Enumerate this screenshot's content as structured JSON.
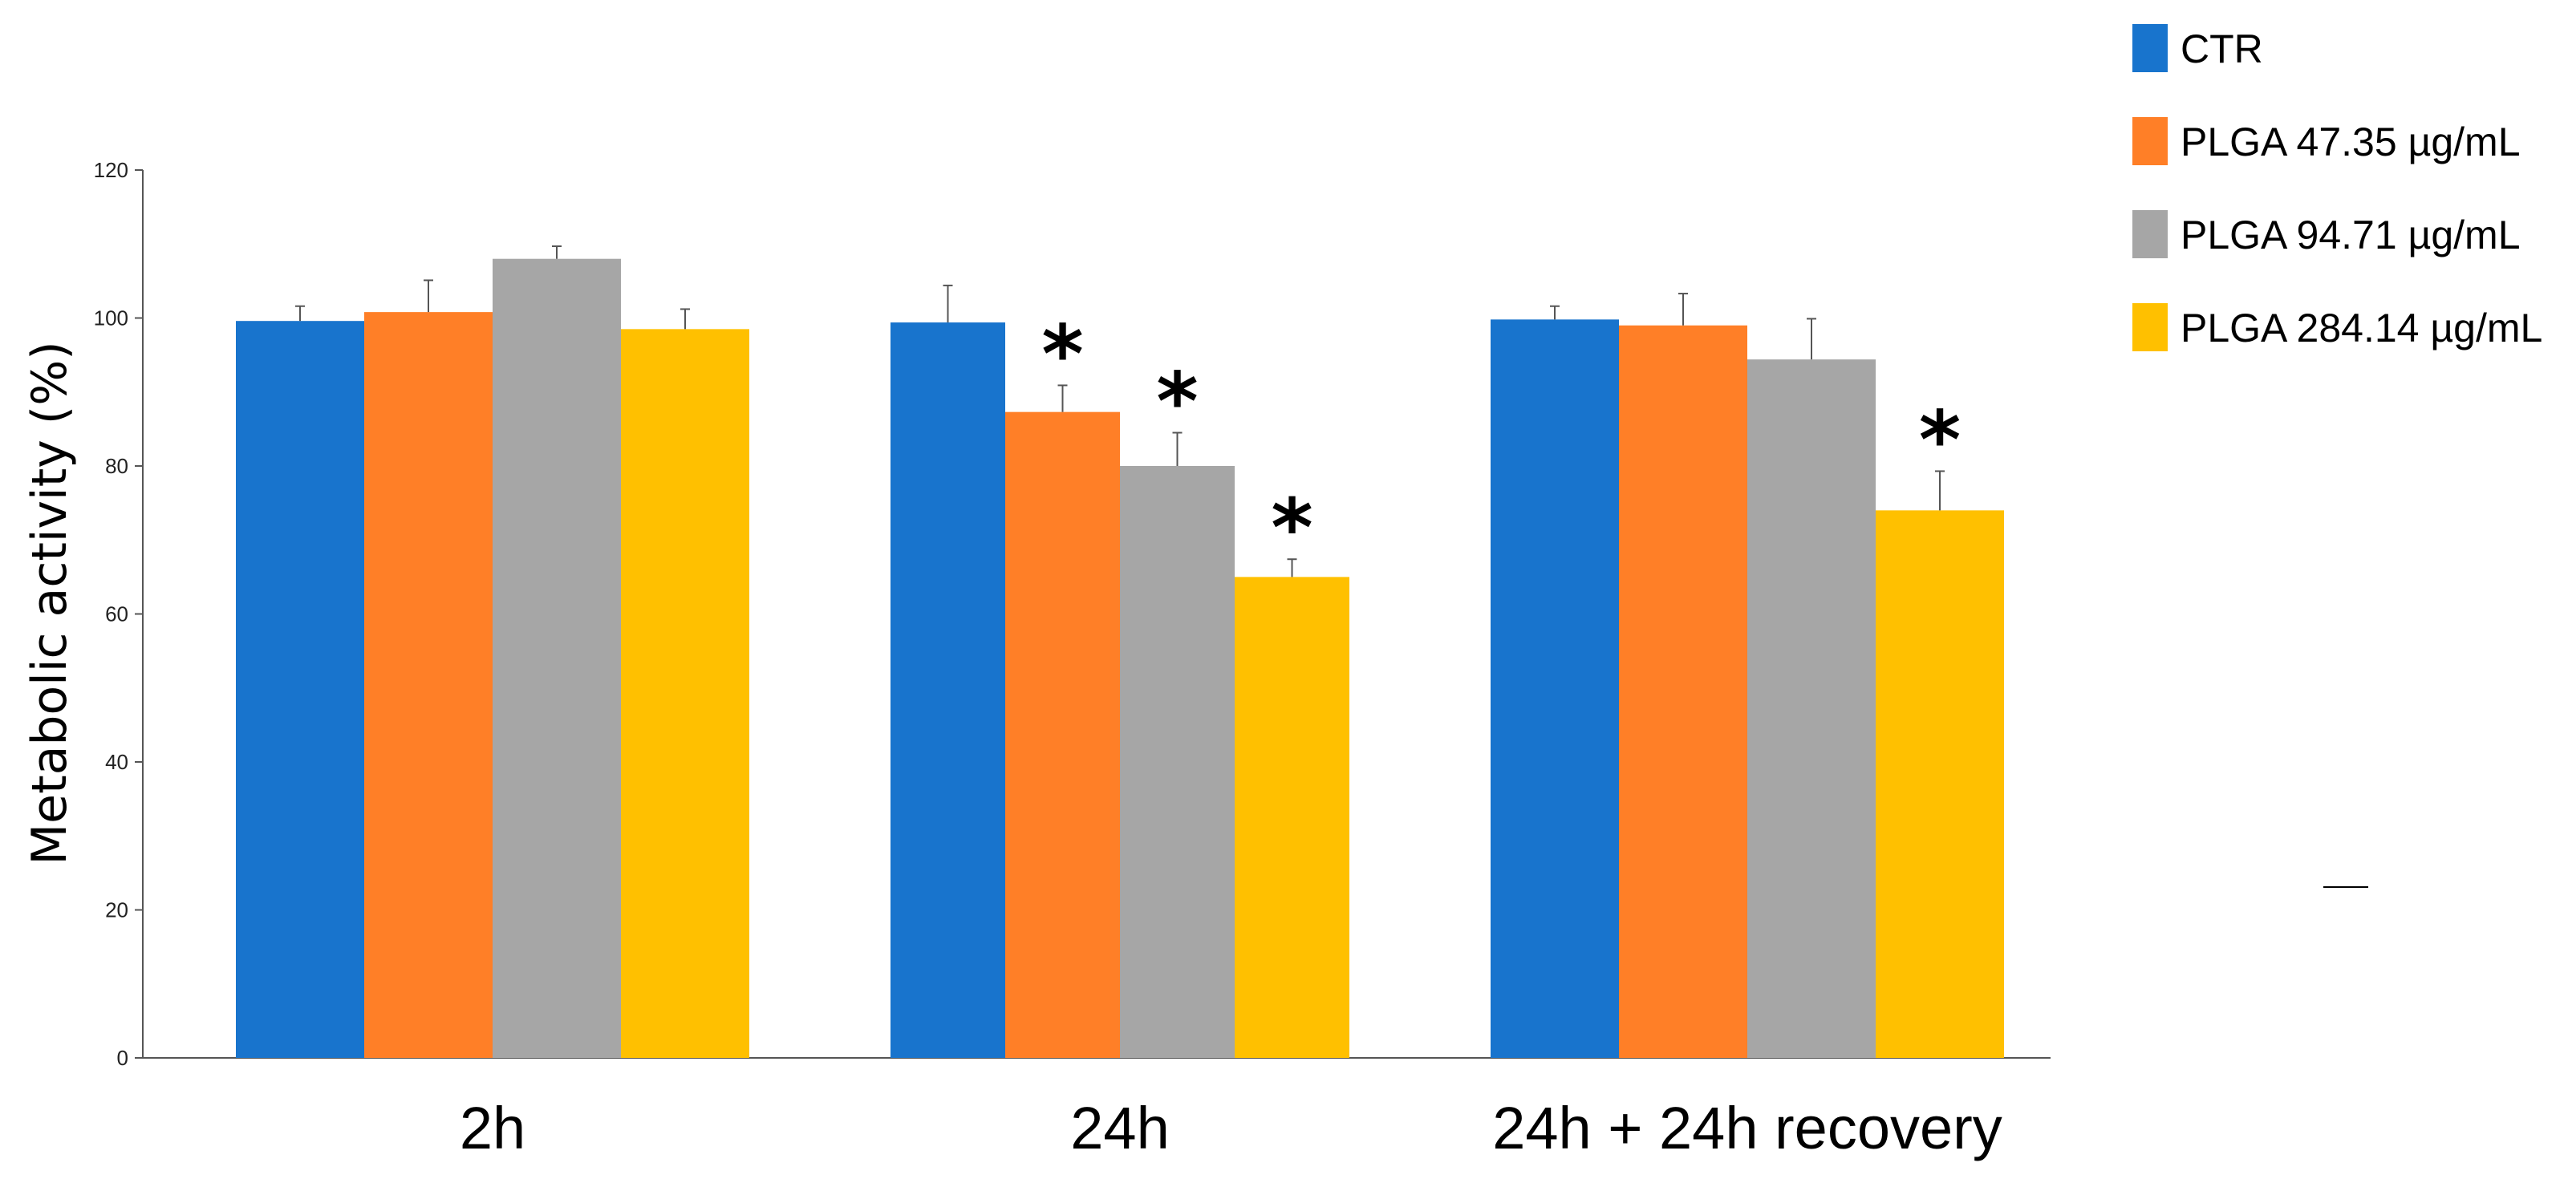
{
  "chart_data": {
    "type": "bar",
    "title": "",
    "xlabel": "",
    "ylabel": "Metabolic activity (%)",
    "ylim": [
      0,
      120
    ],
    "yticks": [
      0,
      20,
      40,
      60,
      80,
      100,
      120
    ],
    "grid": false,
    "legend_position": "top-right",
    "categories": [
      "2h",
      "24h",
      "24h + 24h recovery"
    ],
    "series": [
      {
        "name": "CTR",
        "color": "#1874CD",
        "values": [
          99.6,
          99.4,
          99.8
        ],
        "errors": [
          2.0,
          5.0,
          1.8
        ],
        "significant": [
          false,
          false,
          false
        ]
      },
      {
        "name": "PLGA 47.35 µg/mL",
        "color": "#FF7F27",
        "values": [
          100.8,
          87.3,
          99.0
        ],
        "errors": [
          4.3,
          3.6,
          4.3
        ],
        "significant": [
          false,
          true,
          false
        ]
      },
      {
        "name": "PLGA 94.71 µg/mL",
        "color": "#A6A6A6",
        "values": [
          108.0,
          80.0,
          94.4
        ],
        "errors": [
          1.7,
          4.5,
          5.5
        ],
        "significant": [
          false,
          true,
          false
        ]
      },
      {
        "name": "PLGA 284.14 µg/mL",
        "color": "#FFC000",
        "values": [
          98.5,
          65.0,
          74.0
        ],
        "errors": [
          2.7,
          2.4,
          5.3
        ],
        "significant": [
          false,
          true,
          true
        ]
      }
    ],
    "significance_marker": "*"
  }
}
